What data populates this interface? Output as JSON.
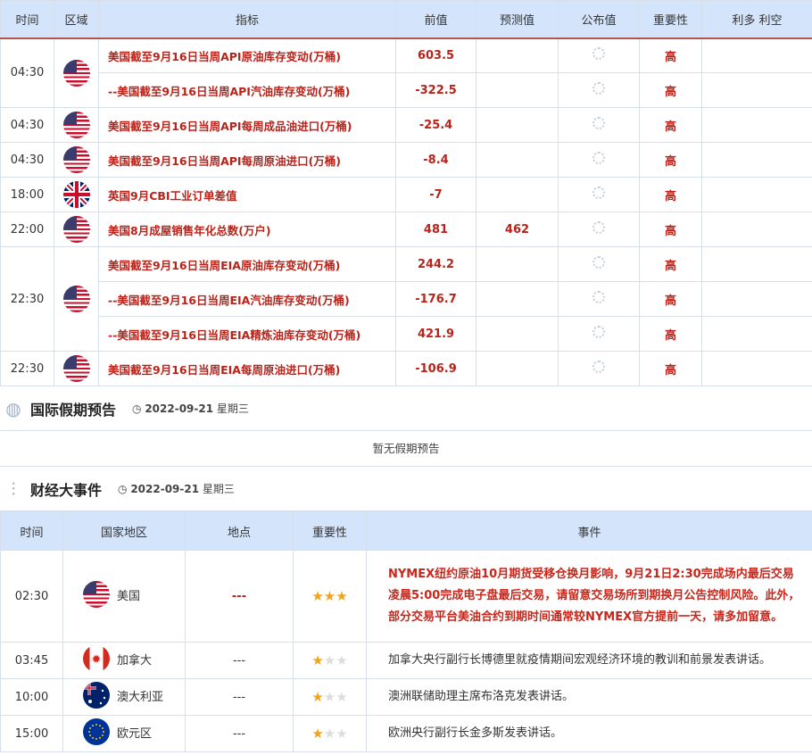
{
  "calendar": {
    "headers": [
      "时间",
      "区域",
      "指标",
      "前值",
      "预测值",
      "公布值",
      "重要性",
      "利多 利空"
    ],
    "groups": [
      {
        "time": "04:30",
        "flag": "us",
        "rows": [
          {
            "indicator": "美国截至9月16日当周API原油库存变动(万桶)",
            "previous": "603.5",
            "forecast": "",
            "actual": "loading",
            "importance": "高",
            "effect": ""
          },
          {
            "indicator": "--美国截至9月16日当周API汽油库存变动(万桶)",
            "previous": "-322.5",
            "forecast": "",
            "actual": "loading",
            "importance": "高",
            "effect": ""
          }
        ]
      },
      {
        "time": "04:30",
        "flag": "us",
        "rows": [
          {
            "indicator": "美国截至9月16日当周API每周成品油进口(万桶)",
            "previous": "-25.4",
            "forecast": "",
            "actual": "loading",
            "importance": "高",
            "effect": ""
          }
        ]
      },
      {
        "time": "04:30",
        "flag": "us",
        "rows": [
          {
            "indicator": "美国截至9月16日当周API每周原油进口(万桶)",
            "previous": "-8.4",
            "forecast": "",
            "actual": "loading",
            "importance": "高",
            "effect": ""
          }
        ]
      },
      {
        "time": "18:00",
        "flag": "uk",
        "rows": [
          {
            "indicator": "英国9月CBI工业订单差值",
            "previous": "-7",
            "forecast": "",
            "actual": "loading",
            "importance": "高",
            "effect": ""
          }
        ]
      },
      {
        "time": "22:00",
        "flag": "us",
        "rows": [
          {
            "indicator": "美国8月成屋销售年化总数(万户)",
            "previous": "481",
            "forecast": "462",
            "actual": "loading",
            "importance": "高",
            "effect": ""
          }
        ]
      },
      {
        "time": "22:30",
        "flag": "us",
        "rows": [
          {
            "indicator": "美国截至9月16日当周EIA原油库存变动(万桶)",
            "previous": "244.2",
            "forecast": "",
            "actual": "loading",
            "importance": "高",
            "effect": ""
          },
          {
            "indicator": "--美国截至9月16日当周EIA汽油库存变动(万桶)",
            "previous": "-176.7",
            "forecast": "",
            "actual": "loading",
            "importance": "高",
            "effect": ""
          },
          {
            "indicator": "--美国截至9月16日当周EIA精炼油库存变动(万桶)",
            "previous": "421.9",
            "forecast": "",
            "actual": "loading",
            "importance": "高",
            "effect": ""
          }
        ]
      },
      {
        "time": "22:30",
        "flag": "us",
        "rows": [
          {
            "indicator": "美国截至9月16日当周EIA每周原油进口(万桶)",
            "previous": "-106.9",
            "forecast": "",
            "actual": "loading",
            "importance": "高",
            "effect": ""
          }
        ]
      }
    ]
  },
  "holidays": {
    "icon": "globe-icon",
    "title": "国际假期预告",
    "date": "2022-09-21",
    "weekday": "星期三",
    "empty": "暂无假期预告"
  },
  "events": {
    "icon": "sliders-icon",
    "title": "财经大事件",
    "date": "2022-09-21",
    "weekday": "星期三",
    "headers": [
      "时间",
      "国家地区",
      "地点",
      "重要性",
      "事件"
    ],
    "rows": [
      {
        "time": "02:30",
        "flag": "us",
        "country": "美国",
        "place": "---",
        "stars": 3,
        "highlight": true,
        "event": "NYMEX纽约原油10月期货受移仓换月影响，9月21日2:30完成场内最后交易凌晨5:00完成电子盘最后交易，请留意交易场所到期换月公告控制风险。此外，部分交易平台美油合约到期时间通常较NYMEX官方提前一天，请多加留意。"
      },
      {
        "time": "03:45",
        "flag": "ca",
        "country": "加拿大",
        "place": "---",
        "stars": 1,
        "highlight": false,
        "event": "加拿大央行副行长博德里就疫情期间宏观经济环境的教训和前景发表讲话。"
      },
      {
        "time": "10:00",
        "flag": "au",
        "country": "澳大利亚",
        "place": "---",
        "stars": 1,
        "highlight": false,
        "event": "澳洲联储助理主席布洛克发表讲话。"
      },
      {
        "time": "15:00",
        "flag": "eu",
        "country": "欧元区",
        "place": "---",
        "stars": 1,
        "highlight": false,
        "event": "欧洲央行副行长金多斯发表讲话。"
      }
    ]
  },
  "colors": {
    "accent_red": "#b8231a",
    "header_bg": "#d4e4fb",
    "star": "#f3a21c"
  }
}
